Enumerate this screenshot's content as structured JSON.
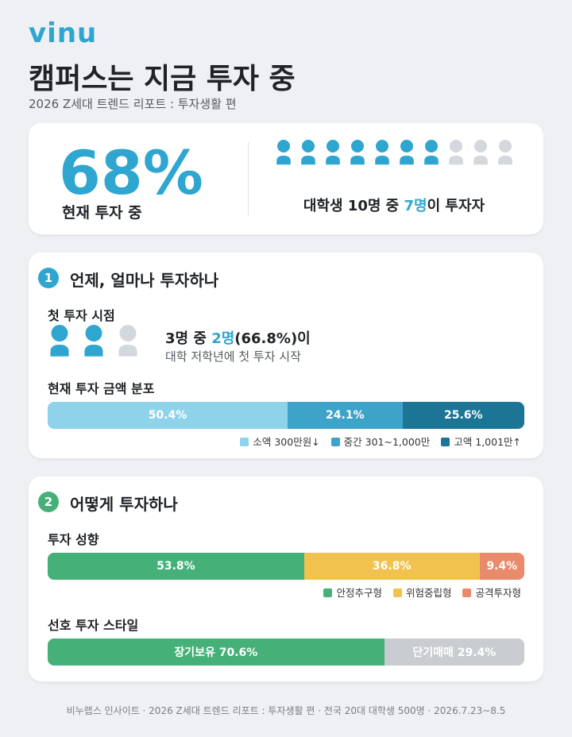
{
  "header": {
    "brand": "vinu",
    "title": "캠퍼스는 지금 투자 중",
    "subtitle": "2026 Z세대 트렌드 리포트 : 투자생활 편"
  },
  "summary": {
    "big_stat": "68%",
    "big_stat_caption": "현재 투자 중",
    "sentence": [
      "대학생 10명 중 ",
      "7명",
      "이 투자자"
    ]
  },
  "sections": [
    {
      "number": "1",
      "title": "언제, 얼마나 투자하나",
      "first_investment": {
        "heading": "첫 투자 시점",
        "sentence": [
          "3명 중 ",
          "2명",
          "(66.8%)이"
        ],
        "note": "대학 저학년에 첫 투자 시작"
      },
      "bars": [
        {
          "heading": "현재 투자 금액 분포",
          "values": [
            50.4,
            24.1,
            25.6
          ],
          "value_labels": [
            "50.4%",
            "24.1%",
            "25.6%"
          ],
          "colors": [
            "#8fd3ea",
            "#3ea3c9",
            "#1d7596"
          ],
          "legend": [
            "소액 300만원↓",
            "중간 301~1,000만",
            "고액 1,001만↑"
          ]
        }
      ]
    },
    {
      "number": "2",
      "title": "어떻게 투자하나",
      "bars": [
        {
          "heading": "투자 성향",
          "values": [
            53.8,
            36.8,
            9.4
          ],
          "value_labels": [
            "53.8%",
            "36.8%",
            "9.4%"
          ],
          "colors": [
            "#45b078",
            "#f2c24f",
            "#e98a6b"
          ],
          "legend": [
            "안정추구형",
            "위험중립형",
            "공격투자형"
          ]
        },
        {
          "heading": "선호 투자 스타일",
          "values": [
            70.6,
            29.4
          ],
          "value_labels": [
            "장기보유 70.6%",
            "단기매매 29.4%"
          ],
          "colors": [
            "#45b078",
            "#c9ccd1"
          ]
        }
      ]
    }
  ],
  "footer": "비누랩스 인사이트 · 2026 Z세대 트렌드 리포트 : 투자생활 편 · 전국 20대 대학생 500명 · 2026.7.23~8.5"
}
